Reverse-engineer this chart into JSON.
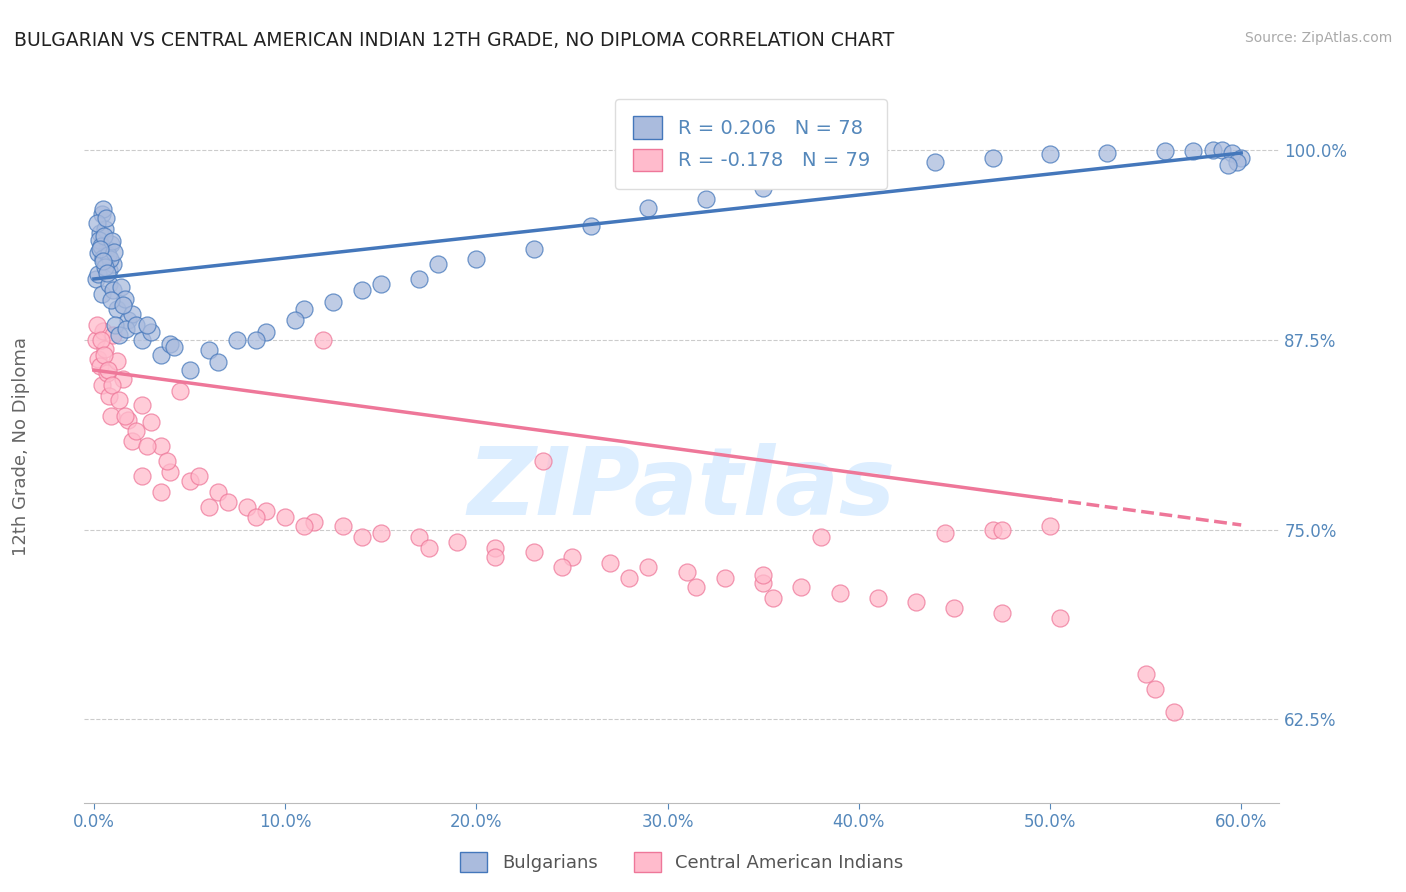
{
  "title": "BULGARIAN VS CENTRAL AMERICAN INDIAN 12TH GRADE, NO DIPLOMA CORRELATION CHART",
  "source": "Source: ZipAtlas.com",
  "ylabel_label": "12th Grade, No Diploma",
  "x_tick_labels": [
    "0.0%",
    "10.0%",
    "20.0%",
    "30.0%",
    "40.0%",
    "50.0%",
    "60.0%"
  ],
  "x_tick_vals": [
    0,
    10,
    20,
    30,
    40,
    50,
    60
  ],
  "y_tick_labels": [
    "100.0%",
    "87.5%",
    "75.0%",
    "62.5%"
  ],
  "y_tick_vals": [
    100,
    87.5,
    75,
    62.5
  ],
  "xlim": [
    -0.5,
    62
  ],
  "ylim": [
    57,
    104
  ],
  "blue_r": "0.206",
  "blue_n": "78",
  "pink_r": "-0.178",
  "pink_n": "79",
  "legend_labels": [
    "Bulgarians",
    "Central American Indians"
  ],
  "blue_color": "#4477BB",
  "pink_color": "#EE7799",
  "blue_fill": "#AABBDD",
  "pink_fill": "#FFBBCC",
  "watermark": "ZIPatlas",
  "blue_scatter_x": [
    0.1,
    0.2,
    0.3,
    0.4,
    0.5,
    0.6,
    0.7,
    0.8,
    0.9,
    1.0,
    0.15,
    0.25,
    0.35,
    0.45,
    0.55,
    0.65,
    0.75,
    0.85,
    0.95,
    1.05,
    0.2,
    0.4,
    0.6,
    0.8,
    1.0,
    1.2,
    1.4,
    1.6,
    1.8,
    2.0,
    0.3,
    0.5,
    0.7,
    0.9,
    1.1,
    1.3,
    1.5,
    1.7,
    2.2,
    2.5,
    3.0,
    3.5,
    4.0,
    5.0,
    6.0,
    7.5,
    9.0,
    11.0,
    14.0,
    17.0,
    20.0,
    23.0,
    26.0,
    29.0,
    32.0,
    35.0,
    38.0,
    41.0,
    44.0,
    47.0,
    50.0,
    53.0,
    56.0,
    57.5,
    58.5,
    59.0,
    59.5,
    60.0,
    59.8,
    59.3,
    2.8,
    4.2,
    6.5,
    8.5,
    10.5,
    12.5,
    15.0,
    18.0
  ],
  "blue_scatter_y": [
    91.5,
    93.2,
    94.5,
    95.8,
    96.1,
    94.8,
    93.5,
    92.1,
    93.8,
    92.5,
    95.2,
    94.1,
    93.7,
    92.9,
    94.3,
    95.5,
    93.1,
    92.8,
    94.0,
    93.3,
    91.8,
    90.5,
    92.3,
    91.2,
    90.8,
    89.5,
    91.0,
    90.2,
    88.8,
    89.2,
    93.5,
    92.7,
    91.9,
    90.1,
    88.5,
    87.8,
    89.8,
    88.2,
    88.5,
    87.5,
    88.0,
    86.5,
    87.2,
    85.5,
    86.8,
    87.5,
    88.0,
    89.5,
    90.8,
    91.5,
    92.8,
    93.5,
    95.0,
    96.2,
    96.8,
    97.5,
    98.1,
    98.8,
    99.2,
    99.5,
    99.7,
    99.8,
    99.9,
    99.9,
    100.0,
    100.0,
    99.8,
    99.5,
    99.2,
    99.0,
    88.5,
    87.0,
    86.0,
    87.5,
    88.8,
    90.0,
    91.2,
    92.5
  ],
  "pink_scatter_x": [
    0.1,
    0.2,
    0.3,
    0.4,
    0.5,
    0.6,
    0.7,
    0.8,
    0.9,
    1.0,
    1.2,
    1.5,
    1.8,
    2.0,
    2.5,
    3.0,
    3.5,
    4.0,
    4.5,
    5.0,
    0.15,
    0.35,
    0.55,
    0.75,
    0.95,
    1.3,
    1.6,
    2.2,
    2.8,
    3.8,
    5.5,
    6.5,
    7.0,
    8.0,
    9.0,
    10.0,
    11.5,
    13.0,
    15.0,
    17.0,
    19.0,
    21.0,
    23.0,
    25.0,
    27.0,
    29.0,
    31.0,
    33.0,
    35.0,
    37.0,
    39.0,
    41.0,
    43.0,
    45.0,
    47.5,
    50.5,
    38.0,
    44.5,
    47.0,
    50.0,
    6.0,
    8.5,
    11.0,
    14.0,
    17.5,
    21.0,
    24.5,
    28.0,
    31.5,
    35.5,
    2.5,
    3.5,
    12.0,
    23.5,
    35.0,
    47.5,
    55.0,
    55.5,
    56.5
  ],
  "pink_scatter_y": [
    87.5,
    86.2,
    85.8,
    84.5,
    88.1,
    86.9,
    85.3,
    83.8,
    82.5,
    87.8,
    86.1,
    84.9,
    82.2,
    80.8,
    83.2,
    82.1,
    80.5,
    78.8,
    84.1,
    78.2,
    88.5,
    87.5,
    86.5,
    85.5,
    84.5,
    83.5,
    82.5,
    81.5,
    80.5,
    79.5,
    78.5,
    77.5,
    76.8,
    76.5,
    76.2,
    75.8,
    75.5,
    75.2,
    74.8,
    74.5,
    74.2,
    73.8,
    73.5,
    73.2,
    72.8,
    72.5,
    72.2,
    71.8,
    71.5,
    71.2,
    70.8,
    70.5,
    70.2,
    69.8,
    69.5,
    69.2,
    74.5,
    74.8,
    75.0,
    75.2,
    76.5,
    75.8,
    75.2,
    74.5,
    73.8,
    73.2,
    72.5,
    71.8,
    71.2,
    70.5,
    78.5,
    77.5,
    87.5,
    79.5,
    72.0,
    75.0,
    65.5,
    64.5,
    63.0
  ],
  "blue_trend_x0": 0,
  "blue_trend_x1": 60,
  "blue_trend_y0": 91.5,
  "blue_trend_y1": 99.8,
  "pink_trend_x0": 0,
  "pink_trend_x1": 50,
  "pink_trend_y0": 85.5,
  "pink_trend_y1": 77.0,
  "pink_dash_x0": 50,
  "pink_dash_x1": 60,
  "pink_dash_y0": 77.0,
  "pink_dash_y1": 75.3,
  "background_color": "#ffffff",
  "grid_color": "#cccccc",
  "title_color": "#222222",
  "axis_color": "#5588BB",
  "watermark_color": "#DDEEFF"
}
